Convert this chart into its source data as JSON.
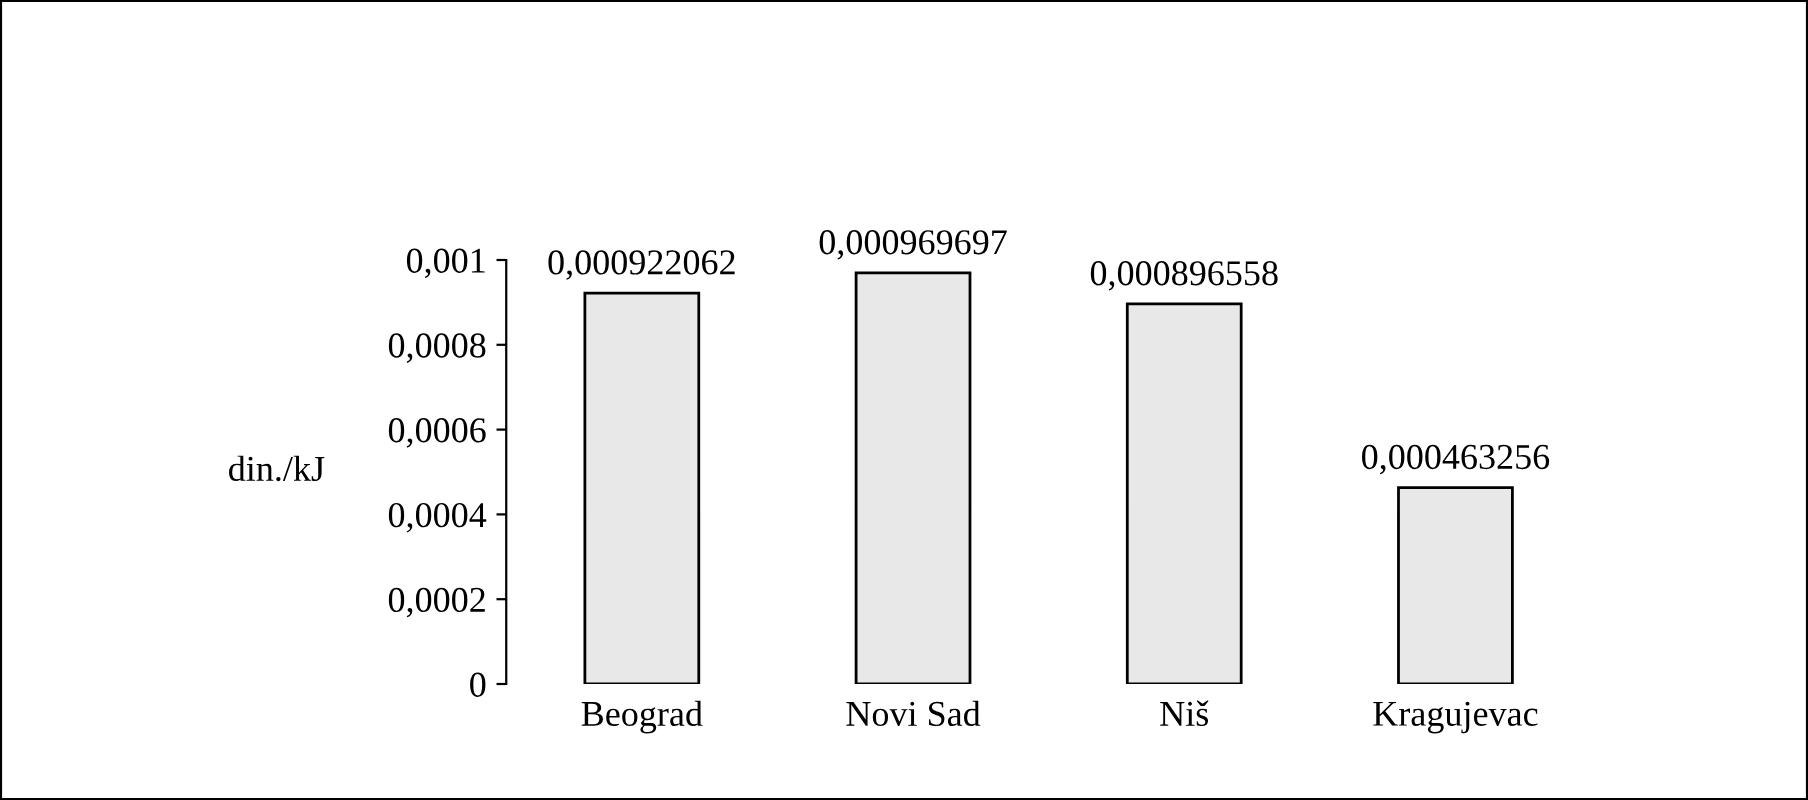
{
  "chart_data": {
    "type": "bar",
    "ylabel": "din./kJ",
    "categories": [
      "Beograd",
      "Novi Sad",
      "Niš",
      "Kragujevac"
    ],
    "values": [
      0.000922062,
      0.000969697,
      0.000896558,
      0.000463256
    ],
    "value_labels": [
      "0,000922062",
      "0,000969697",
      "0,000896558",
      "0,000463256"
    ],
    "color": "#e8e8e8",
    "ylim": [
      0,
      0.001
    ],
    "yticks": [
      {
        "value": 0,
        "label": "0"
      },
      {
        "value": 0.0002,
        "label": "0,0002"
      },
      {
        "value": 0.0004,
        "label": "0,0004"
      },
      {
        "value": 0.0006,
        "label": "0,0006"
      },
      {
        "value": 0.0008,
        "label": "0,0008"
      },
      {
        "value": 0.001,
        "label": "0,001"
      }
    ],
    "grid": false,
    "legend": false
  }
}
